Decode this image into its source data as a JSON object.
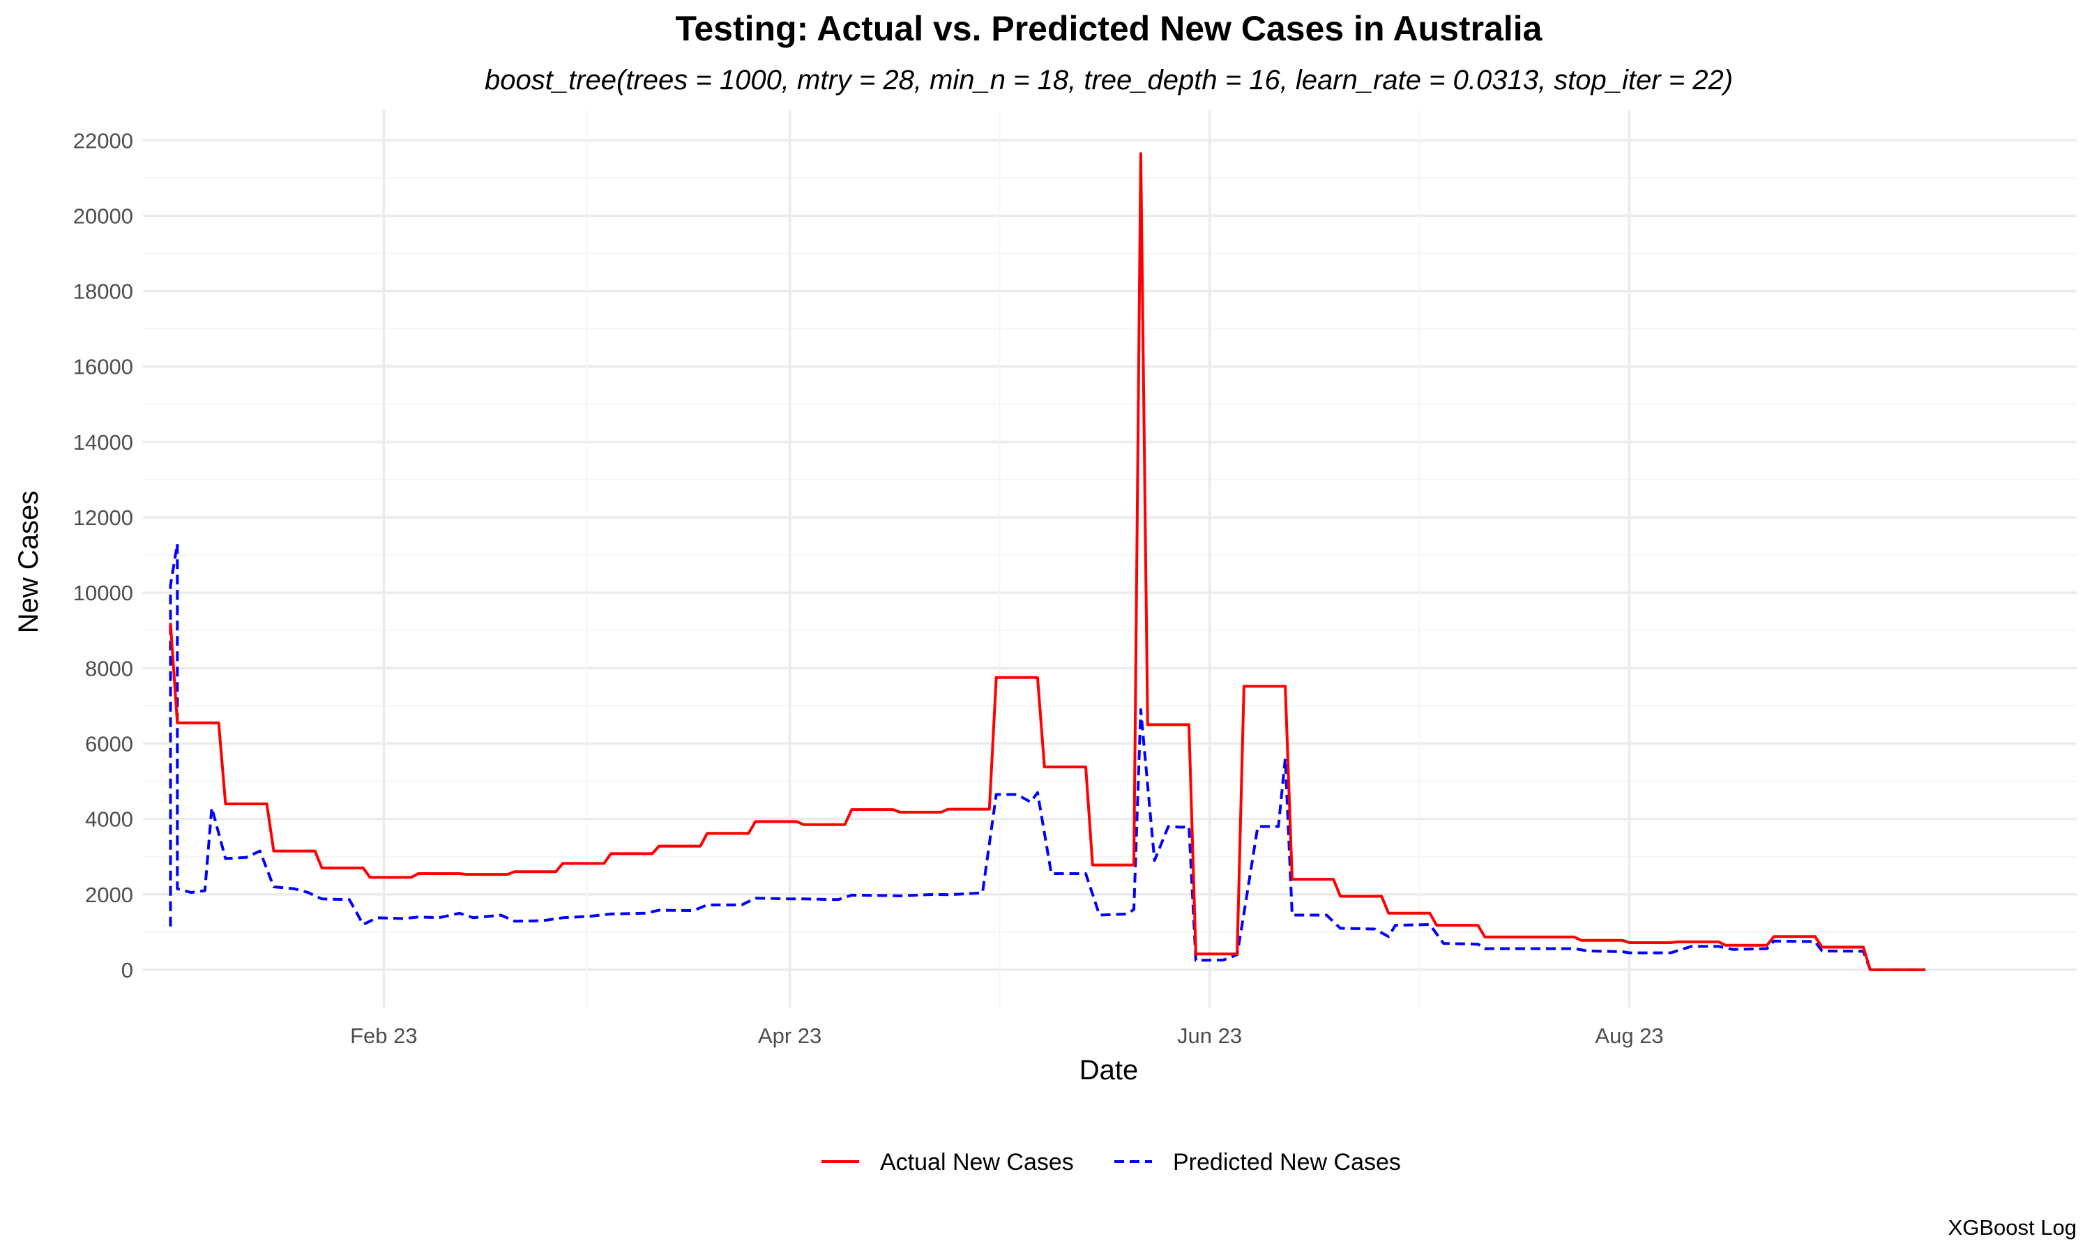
{
  "chart_data": {
    "type": "line",
    "title": "Testing: Actual vs. Predicted New Cases in Australia",
    "subtitle": "boost_tree(trees = 1000, mtry = 28, min_n = 18, tree_depth = 16, learn_rate = 0.0313, stop_iter = 22)",
    "xlabel": "Date",
    "ylabel": "New Cases",
    "caption": "XGBoost Log",
    "xlim": [
      "2022-12-28",
      "2023-10-05"
    ],
    "ylim": [
      -1000,
      22800
    ],
    "x_ticks": [
      {
        "date": "2023-02-01",
        "label": "Feb 23"
      },
      {
        "date": "2023-04-01",
        "label": "Apr 23"
      },
      {
        "date": "2023-06-01",
        "label": "Jun 23"
      },
      {
        "date": "2023-08-01",
        "label": "Aug 23"
      }
    ],
    "y_ticks": [
      0,
      2000,
      4000,
      6000,
      8000,
      10000,
      12000,
      14000,
      16000,
      18000,
      20000,
      22000
    ],
    "grid": true,
    "legend_position": "bottom",
    "series": [
      {
        "name": "Actual New Cases",
        "color": "#ff0000",
        "dash": "solid",
        "points": [
          [
            "2023-01-01",
            9200
          ],
          [
            "2023-01-02",
            6550
          ],
          [
            "2023-01-08",
            6550
          ],
          [
            "2023-01-09",
            4400
          ],
          [
            "2023-01-15",
            4400
          ],
          [
            "2023-01-16",
            3150
          ],
          [
            "2023-01-22",
            3150
          ],
          [
            "2023-01-23",
            2700
          ],
          [
            "2023-01-29",
            2700
          ],
          [
            "2023-01-30",
            2450
          ],
          [
            "2023-02-05",
            2450
          ],
          [
            "2023-02-06",
            2550
          ],
          [
            "2023-02-12",
            2550
          ],
          [
            "2023-02-13",
            2530
          ],
          [
            "2023-02-19",
            2530
          ],
          [
            "2023-02-20",
            2600
          ],
          [
            "2023-02-26",
            2600
          ],
          [
            "2023-02-27",
            2820
          ],
          [
            "2023-03-05",
            2820
          ],
          [
            "2023-03-06",
            3080
          ],
          [
            "2023-03-12",
            3080
          ],
          [
            "2023-03-13",
            3280
          ],
          [
            "2023-03-19",
            3280
          ],
          [
            "2023-03-20",
            3620
          ],
          [
            "2023-03-26",
            3620
          ],
          [
            "2023-03-27",
            3930
          ],
          [
            "2023-04-02",
            3930
          ],
          [
            "2023-04-03",
            3850
          ],
          [
            "2023-04-09",
            3850
          ],
          [
            "2023-04-10",
            4250
          ],
          [
            "2023-04-16",
            4250
          ],
          [
            "2023-04-17",
            4180
          ],
          [
            "2023-04-23",
            4180
          ],
          [
            "2023-04-24",
            4260
          ],
          [
            "2023-04-30",
            4260
          ],
          [
            "2023-05-01",
            7750
          ],
          [
            "2023-05-07",
            7750
          ],
          [
            "2023-05-08",
            5380
          ],
          [
            "2023-05-14",
            5380
          ],
          [
            "2023-05-15",
            2780
          ],
          [
            "2023-05-21",
            2780
          ],
          [
            "2023-05-22",
            21650
          ],
          [
            "2023-05-23",
            6500
          ],
          [
            "2023-05-29",
            6500
          ],
          [
            "2023-05-30",
            420
          ],
          [
            "2023-06-05",
            420
          ],
          [
            "2023-06-06",
            7520
          ],
          [
            "2023-06-12",
            7520
          ],
          [
            "2023-06-13",
            2400
          ],
          [
            "2023-06-19",
            2400
          ],
          [
            "2023-06-20",
            1950
          ],
          [
            "2023-06-26",
            1950
          ],
          [
            "2023-06-27",
            1500
          ],
          [
            "2023-07-03",
            1500
          ],
          [
            "2023-07-04",
            1180
          ],
          [
            "2023-07-10",
            1180
          ],
          [
            "2023-07-11",
            870
          ],
          [
            "2023-07-24",
            870
          ],
          [
            "2023-07-25",
            780
          ],
          [
            "2023-07-31",
            780
          ],
          [
            "2023-08-01",
            720
          ],
          [
            "2023-08-07",
            720
          ],
          [
            "2023-08-08",
            740
          ],
          [
            "2023-08-14",
            740
          ],
          [
            "2023-08-15",
            650
          ],
          [
            "2023-08-21",
            650
          ],
          [
            "2023-08-22",
            880
          ],
          [
            "2023-08-28",
            880
          ],
          [
            "2023-08-29",
            600
          ],
          [
            "2023-09-04",
            600
          ],
          [
            "2023-09-05",
            0
          ],
          [
            "2023-09-13",
            0
          ]
        ]
      },
      {
        "name": "Predicted New Cases",
        "color": "#0000ff",
        "dash": "dashed",
        "points": [
          [
            "2023-01-01",
            1150
          ],
          [
            "2023-01-01",
            10200
          ],
          [
            "2023-01-02",
            11300
          ],
          [
            "2023-01-02",
            2150
          ],
          [
            "2023-01-04",
            2050
          ],
          [
            "2023-01-06",
            2100
          ],
          [
            "2023-01-07",
            4300
          ],
          [
            "2023-01-09",
            2950
          ],
          [
            "2023-01-12",
            2980
          ],
          [
            "2023-01-14",
            3150
          ],
          [
            "2023-01-16",
            2200
          ],
          [
            "2023-01-19",
            2150
          ],
          [
            "2023-01-21",
            2050
          ],
          [
            "2023-01-23",
            1880
          ],
          [
            "2023-01-27",
            1860
          ],
          [
            "2023-01-29",
            1200
          ],
          [
            "2023-01-31",
            1380
          ],
          [
            "2023-02-04",
            1360
          ],
          [
            "2023-02-06",
            1400
          ],
          [
            "2023-02-09",
            1380
          ],
          [
            "2023-02-12",
            1500
          ],
          [
            "2023-02-14",
            1380
          ],
          [
            "2023-02-18",
            1450
          ],
          [
            "2023-02-20",
            1290
          ],
          [
            "2023-02-24",
            1300
          ],
          [
            "2023-02-27",
            1380
          ],
          [
            "2023-03-03",
            1420
          ],
          [
            "2023-03-06",
            1480
          ],
          [
            "2023-03-11",
            1500
          ],
          [
            "2023-03-13",
            1580
          ],
          [
            "2023-03-18",
            1570
          ],
          [
            "2023-03-20",
            1720
          ],
          [
            "2023-03-25",
            1720
          ],
          [
            "2023-03-27",
            1900
          ],
          [
            "2023-04-01",
            1880
          ],
          [
            "2023-04-03",
            1880
          ],
          [
            "2023-04-08",
            1860
          ],
          [
            "2023-04-10",
            1980
          ],
          [
            "2023-04-15",
            1970
          ],
          [
            "2023-04-17",
            1960
          ],
          [
            "2023-04-22",
            2000
          ],
          [
            "2023-04-24",
            1990
          ],
          [
            "2023-04-29",
            2040
          ],
          [
            "2023-05-01",
            4650
          ],
          [
            "2023-05-04",
            4650
          ],
          [
            "2023-05-06",
            4450
          ],
          [
            "2023-05-07",
            4700
          ],
          [
            "2023-05-09",
            2550
          ],
          [
            "2023-05-14",
            2550
          ],
          [
            "2023-05-16",
            1450
          ],
          [
            "2023-05-20",
            1480
          ],
          [
            "2023-05-21",
            1600
          ],
          [
            "2023-05-22",
            6900
          ],
          [
            "2023-05-24",
            2900
          ],
          [
            "2023-05-26",
            3800
          ],
          [
            "2023-05-28",
            3780
          ],
          [
            "2023-05-29",
            3800
          ],
          [
            "2023-05-30",
            250
          ],
          [
            "2023-06-03",
            260
          ],
          [
            "2023-06-05",
            400
          ],
          [
            "2023-06-06",
            1500
          ],
          [
            "2023-06-08",
            3800
          ],
          [
            "2023-06-11",
            3800
          ],
          [
            "2023-06-12",
            5600
          ],
          [
            "2023-06-13",
            1450
          ],
          [
            "2023-06-18",
            1450
          ],
          [
            "2023-06-20",
            1100
          ],
          [
            "2023-06-25",
            1080
          ],
          [
            "2023-06-27",
            880
          ],
          [
            "2023-06-28",
            1180
          ],
          [
            "2023-07-03",
            1200
          ],
          [
            "2023-07-05",
            700
          ],
          [
            "2023-07-10",
            680
          ],
          [
            "2023-07-11",
            560
          ],
          [
            "2023-07-24",
            560
          ],
          [
            "2023-07-26",
            500
          ],
          [
            "2023-07-31",
            480
          ],
          [
            "2023-08-01",
            450
          ],
          [
            "2023-08-07",
            450
          ],
          [
            "2023-08-10",
            620
          ],
          [
            "2023-08-14",
            620
          ],
          [
            "2023-08-16",
            540
          ],
          [
            "2023-08-21",
            560
          ],
          [
            "2023-08-22",
            760
          ],
          [
            "2023-08-28",
            750
          ],
          [
            "2023-08-29",
            500
          ],
          [
            "2023-09-04",
            490
          ],
          [
            "2023-09-05",
            0
          ],
          [
            "2023-09-13",
            0
          ]
        ]
      }
    ]
  }
}
